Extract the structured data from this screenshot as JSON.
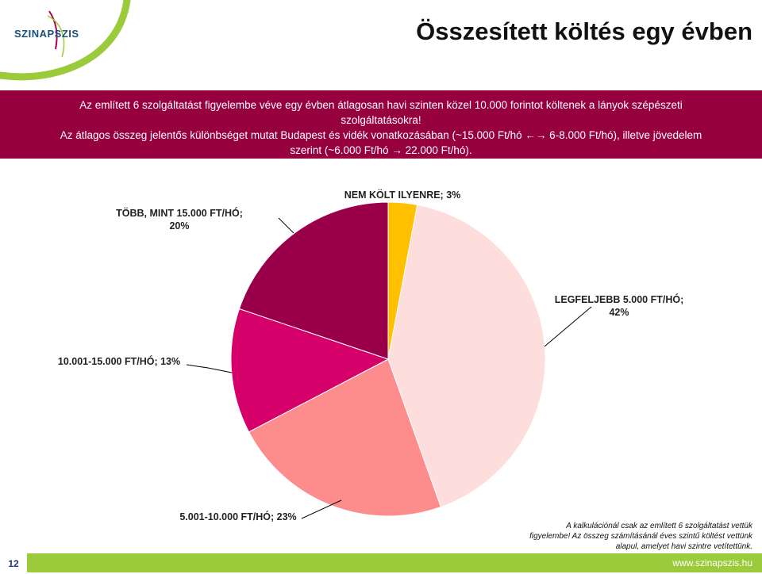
{
  "header": {
    "logo_text": "SZINAPSZIS",
    "title": "Összesített költés egy évben"
  },
  "banner": {
    "lines": [
      "Az említett 6 szolgáltatást figyelembe véve egy évben átlagosan havi szinten közel 10.000 forintot költenek a lányok szépészeti",
      "szolgáltatásokra!",
      "Az átlagos összeg jelentős különbséget mutat Budapest és vidék vonatkozásában (~15.000 Ft/hó ←→ 6-8.000 Ft/hó), illetve jövedelem",
      "szerint (~6.000 Ft/hó → 22.000 Ft/hó)."
    ],
    "bg_color": "#97003f"
  },
  "chart_data": {
    "type": "pie",
    "title": "",
    "slices": [
      {
        "label": "NEM KÖLT ILYENRE",
        "value": 3,
        "label_text": "NEM KÖLT ILYENRE; 3%",
        "color": "#ffc000"
      },
      {
        "label": "LEGFELJEBB 5.000 FT/HÓ",
        "value": 42,
        "label_text_lines": [
          "LEGFELJEBB 5.000 FT/HÓ;",
          "42%"
        ],
        "color": "#fedddd"
      },
      {
        "label": "5.001-10.000 FT/HÓ",
        "value": 23,
        "label_text": "5.001-10.000 FT/HÓ; 23%",
        "color": "#fd8c8c"
      },
      {
        "label": "10.001-15.000 FT/HÓ",
        "value": 13,
        "label_text": "10.001-15.000 FT/HÓ; 13%",
        "color": "#d6006a"
      },
      {
        "label": "TÖBB, MINT 15.000 FT/HÓ",
        "value": 20,
        "label_text_lines": [
          "TÖBB, MINT 15.000 FT/HÓ;",
          "20%"
        ],
        "color": "#9a0049"
      }
    ],
    "legend": "none"
  },
  "note": {
    "lines": [
      "A kalkulációnál csak az említett 6 szolgáltatást vettük",
      "figyelembe! Az összeg számításánál éves szintű költést vettünk",
      "alapul, amelyet havi szintre vetítettünk."
    ]
  },
  "footer": {
    "page_number": "12",
    "website": "www.szinapszis.hu",
    "bar_color": "#9bcb3b"
  }
}
